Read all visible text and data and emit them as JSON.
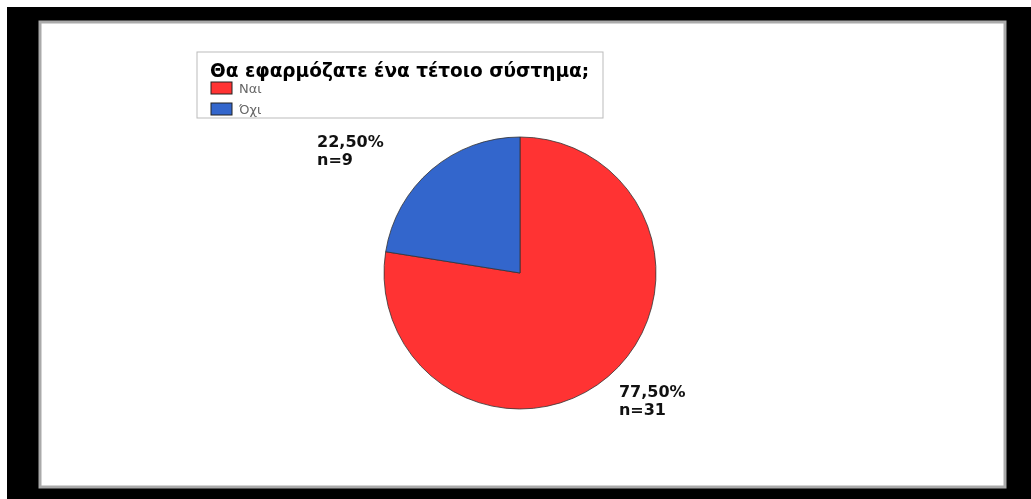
{
  "chart_data": {
    "type": "pie",
    "legend_title": "Θα εφαρμόζατε ένα τέτοιο σύστημα;",
    "categories": [
      "Ναι",
      "Όχι"
    ],
    "values": [
      77.5,
      22.5
    ],
    "colors": [
      "#ff3333",
      "#3366cc"
    ],
    "value_labels": [
      "77,50%\nn=31",
      "22,50%\nn=9"
    ],
    "legend": "top"
  }
}
